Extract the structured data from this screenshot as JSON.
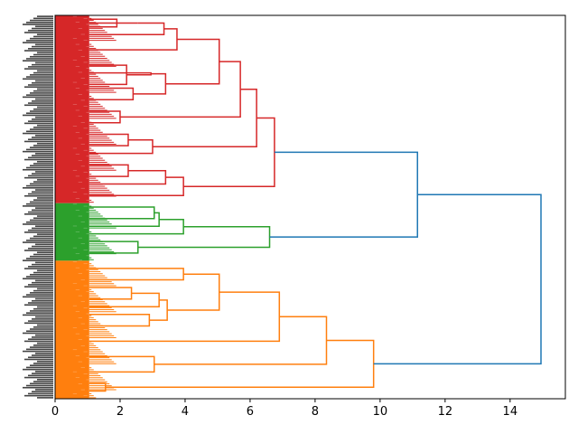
{
  "chart_data": {
    "type": "dendrogram",
    "orientation": "horizontal",
    "xlim": [
      0,
      15.7
    ],
    "x_ticks": [
      0,
      2,
      4,
      6,
      8,
      10,
      12,
      14
    ],
    "x_tick_labels": [
      "0",
      "2",
      "4",
      "6",
      "8",
      "10",
      "12",
      "14"
    ],
    "title": "",
    "xlabel": "",
    "ylabel": "",
    "colors": {
      "red": "#d62728",
      "green": "#2ca02c",
      "orange": "#ff7f0e",
      "link": "#1f77b4"
    },
    "clusters": [
      {
        "color": "red",
        "leaf_share": [
          0.0,
          0.49
        ],
        "merges": [
          {
            "name": "r1",
            "a": "l:0.01",
            "b": "l:0.03",
            "h": 1.9
          },
          {
            "name": "r2",
            "a": "l:0.02",
            "b": "r1",
            "h": 2.55
          },
          {
            "name": "r3",
            "a": "r2",
            "b": "l:0.05",
            "h": 3.35
          },
          {
            "name": "r4",
            "a": "r3",
            "b": "l:0.09",
            "h": 3.75
          },
          {
            "name": "r5",
            "a": "l:0.13",
            "b": "l:0.18",
            "h": 2.2
          },
          {
            "name": "r6",
            "a": "r5",
            "b": "l:0.15",
            "h": 2.95
          },
          {
            "name": "r7",
            "a": "l:0.19",
            "b": "l:0.22",
            "h": 2.4
          },
          {
            "name": "r8",
            "a": "r6",
            "b": "r7",
            "h": 3.4
          },
          {
            "name": "r9",
            "a": "r4",
            "b": "r8",
            "h": 5.05
          },
          {
            "name": "r10",
            "a": "l:0.25",
            "b": "l:0.28",
            "h": 2.0
          },
          {
            "name": "r11",
            "a": "r9",
            "b": "r10",
            "h": 5.7
          },
          {
            "name": "r12",
            "a": "l:0.31",
            "b": "l:0.34",
            "h": 2.25
          },
          {
            "name": "r13",
            "a": "r12",
            "b": "l:0.36",
            "h": 3.0
          },
          {
            "name": "r14",
            "a": "r11",
            "b": "r13",
            "h": 6.2
          },
          {
            "name": "r15",
            "a": "l:0.39",
            "b": "l:0.42",
            "h": 2.25
          },
          {
            "name": "r16",
            "a": "r15",
            "b": "l:0.44",
            "h": 3.4
          },
          {
            "name": "r17",
            "a": "r16",
            "b": "l:0.47",
            "h": 3.95
          },
          {
            "name": "r18",
            "a": "r14",
            "b": "r17",
            "h": 6.75
          }
        ]
      },
      {
        "color": "green",
        "leaf_share": [
          0.49,
          0.64
        ],
        "merges": [
          {
            "name": "g1",
            "a": "l:0.50",
            "b": "l:0.53",
            "h": 3.05
          },
          {
            "name": "g2",
            "a": "g1",
            "b": "l:0.55",
            "h": 3.2
          },
          {
            "name": "g3",
            "a": "g2",
            "b": "l:0.57",
            "h": 3.95
          },
          {
            "name": "g4",
            "a": "l:0.59",
            "b": "l:0.62",
            "h": 2.55
          },
          {
            "name": "g5",
            "a": "g3",
            "b": "g4",
            "h": 6.6
          }
        ]
      },
      {
        "color": "orange",
        "leaf_share": [
          0.64,
          1.0
        ],
        "merges": [
          {
            "name": "o1",
            "a": "l:0.66",
            "b": "l:0.69",
            "h": 3.95
          },
          {
            "name": "o2",
            "a": "l:0.71",
            "b": "l:0.74",
            "h": 2.35
          },
          {
            "name": "o3",
            "a": "o2",
            "b": "l:0.76",
            "h": 3.2
          },
          {
            "name": "o4",
            "a": "l:0.78",
            "b": "l:0.81",
            "h": 2.9
          },
          {
            "name": "o5",
            "a": "o3",
            "b": "o4",
            "h": 3.45
          },
          {
            "name": "o6",
            "a": "o1",
            "b": "o5",
            "h": 5.05
          },
          {
            "name": "o7",
            "a": "o6",
            "b": "l:0.85",
            "h": 6.9
          },
          {
            "name": "o8",
            "a": "l:0.89",
            "b": "l:0.93",
            "h": 3.05
          },
          {
            "name": "o9",
            "a": "o7",
            "b": "o8",
            "h": 8.35
          },
          {
            "name": "o10",
            "a": "l:0.96",
            "b": "l:0.98",
            "h": 1.55
          },
          {
            "name": "o11",
            "a": "o9",
            "b": "o10",
            "h": 9.8
          }
        ]
      }
    ],
    "top_links": [
      {
        "name": "t1",
        "a": "r18",
        "b": "g5",
        "h": 11.15
      },
      {
        "name": "t2",
        "a": "t1",
        "b": "o11",
        "h": 14.95
      }
    ]
  }
}
